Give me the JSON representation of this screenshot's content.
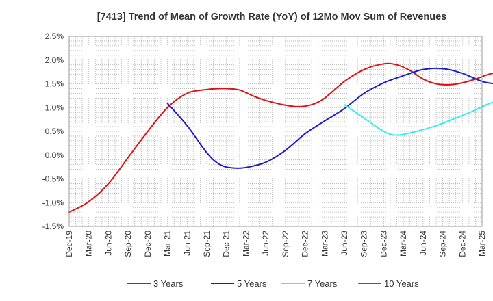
{
  "chart_data": {
    "type": "line",
    "title": "[7413]  Trend of Mean of Growth Rate (YoY) of 12Mo Mov Sum of Revenues",
    "xlabel": "",
    "ylabel": "",
    "x_ticks": [
      "Dec-19",
      "Mar-20",
      "Jun-20",
      "Sep-20",
      "Dec-20",
      "Mar-21",
      "Jun-21",
      "Sep-21",
      "Dec-21",
      "Mar-22",
      "Jun-22",
      "Sep-22",
      "Dec-22",
      "Mar-23",
      "Jun-23",
      "Sep-23",
      "Dec-23",
      "Mar-24",
      "Jun-24",
      "Sep-24",
      "Dec-24",
      "Mar-25"
    ],
    "y_ticks": [
      "2.5%",
      "2.0%",
      "1.5%",
      "1.0%",
      "0.5%",
      "0.0%",
      "-0.5%",
      "-1.0%",
      "-1.5%"
    ],
    "y_tick_values": [
      2.5,
      2.0,
      1.5,
      1.0,
      0.5,
      0.0,
      -0.5,
      -1.0,
      -1.5
    ],
    "ylim": [
      -1.5,
      2.5
    ],
    "x_month_range": [
      0,
      63
    ],
    "grid": true,
    "legend_position": "bottom",
    "series": [
      {
        "name": "3 Years",
        "color": "#dd1111",
        "points": [
          [
            0,
            -1.2
          ],
          [
            3,
            -0.98
          ],
          [
            6,
            -0.6
          ],
          [
            9,
            -0.05
          ],
          [
            12,
            0.5
          ],
          [
            15,
            1.0
          ],
          [
            18,
            1.3
          ],
          [
            21,
            1.38
          ],
          [
            24,
            1.4
          ],
          [
            26,
            1.37
          ],
          [
            28,
            1.25
          ],
          [
            30,
            1.15
          ],
          [
            33,
            1.05
          ],
          [
            35,
            1.02
          ],
          [
            37,
            1.06
          ],
          [
            39,
            1.2
          ],
          [
            42,
            1.55
          ],
          [
            45,
            1.8
          ],
          [
            48,
            1.92
          ],
          [
            50,
            1.9
          ],
          [
            52,
            1.78
          ],
          [
            54,
            1.6
          ],
          [
            56,
            1.5
          ],
          [
            58,
            1.48
          ],
          [
            60,
            1.52
          ],
          [
            62,
            1.6
          ],
          [
            64,
            1.7
          ],
          [
            65,
            1.73
          ]
        ]
      },
      {
        "name": "5 Years",
        "color": "#1a1acc",
        "points": [
          [
            15,
            1.09
          ],
          [
            18,
            0.62
          ],
          [
            21,
            0.05
          ],
          [
            23,
            -0.2
          ],
          [
            25,
            -0.27
          ],
          [
            27,
            -0.26
          ],
          [
            30,
            -0.15
          ],
          [
            33,
            0.1
          ],
          [
            36,
            0.45
          ],
          [
            39,
            0.72
          ],
          [
            42,
            0.98
          ],
          [
            45,
            1.3
          ],
          [
            48,
            1.52
          ],
          [
            51,
            1.67
          ],
          [
            54,
            1.8
          ],
          [
            57,
            1.82
          ],
          [
            60,
            1.72
          ],
          [
            63,
            1.55
          ],
          [
            65,
            1.5
          ]
        ]
      },
      {
        "name": "7 Years",
        "color": "#33eeee",
        "points": [
          [
            42,
            1.06
          ],
          [
            45,
            0.78
          ],
          [
            48,
            0.5
          ],
          [
            50,
            0.42
          ],
          [
            53,
            0.5
          ],
          [
            56,
            0.62
          ],
          [
            59,
            0.78
          ],
          [
            62,
            0.95
          ],
          [
            64,
            1.08
          ],
          [
            65,
            1.12
          ]
        ]
      },
      {
        "name": "10 Years",
        "color": "#228822",
        "points": []
      }
    ]
  }
}
